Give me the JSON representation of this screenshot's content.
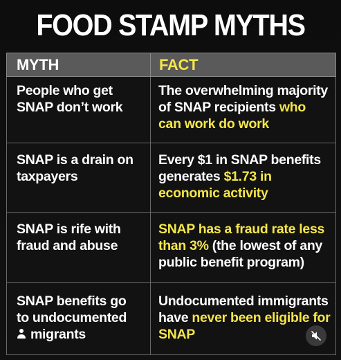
{
  "title": "FOOD STAMP MYTHS",
  "headers": {
    "myth": "MYTH",
    "fact": "FACT"
  },
  "rows": [
    {
      "myth": "People who get SNAP don’t work",
      "fact_pre": "The overwhelming majority of SNAP recipients ",
      "fact_hl": "who can work do work",
      "fact_post": ""
    },
    {
      "myth": "SNAP is a drain on taxpayers",
      "fact_pre": "Every $1 in SNAP benefits generates ",
      "fact_hl": "$1.73 in economic activity",
      "fact_post": ""
    },
    {
      "myth": "SNAP is rife with fraud and abuse",
      "fact_pre": "",
      "fact_hl": "SNAP has a fraud rate less than 3%",
      "fact_post": " (the lowest of any public benefit program)"
    },
    {
      "myth_line1": "SNAP benefits go",
      "myth_line2": "to undocumented",
      "myth_line3": "migrants",
      "fact_pre": "Undocumented immigrants have ",
      "fact_hl": "never been eligible for SNAP",
      "fact_post": ""
    }
  ],
  "icons": {
    "person": "person-icon",
    "mute": "muted-speaker-icon"
  },
  "colors": {
    "highlight": "#f5e64a",
    "header_bg": "#5a5a5a",
    "background": "#0b0b0b"
  }
}
